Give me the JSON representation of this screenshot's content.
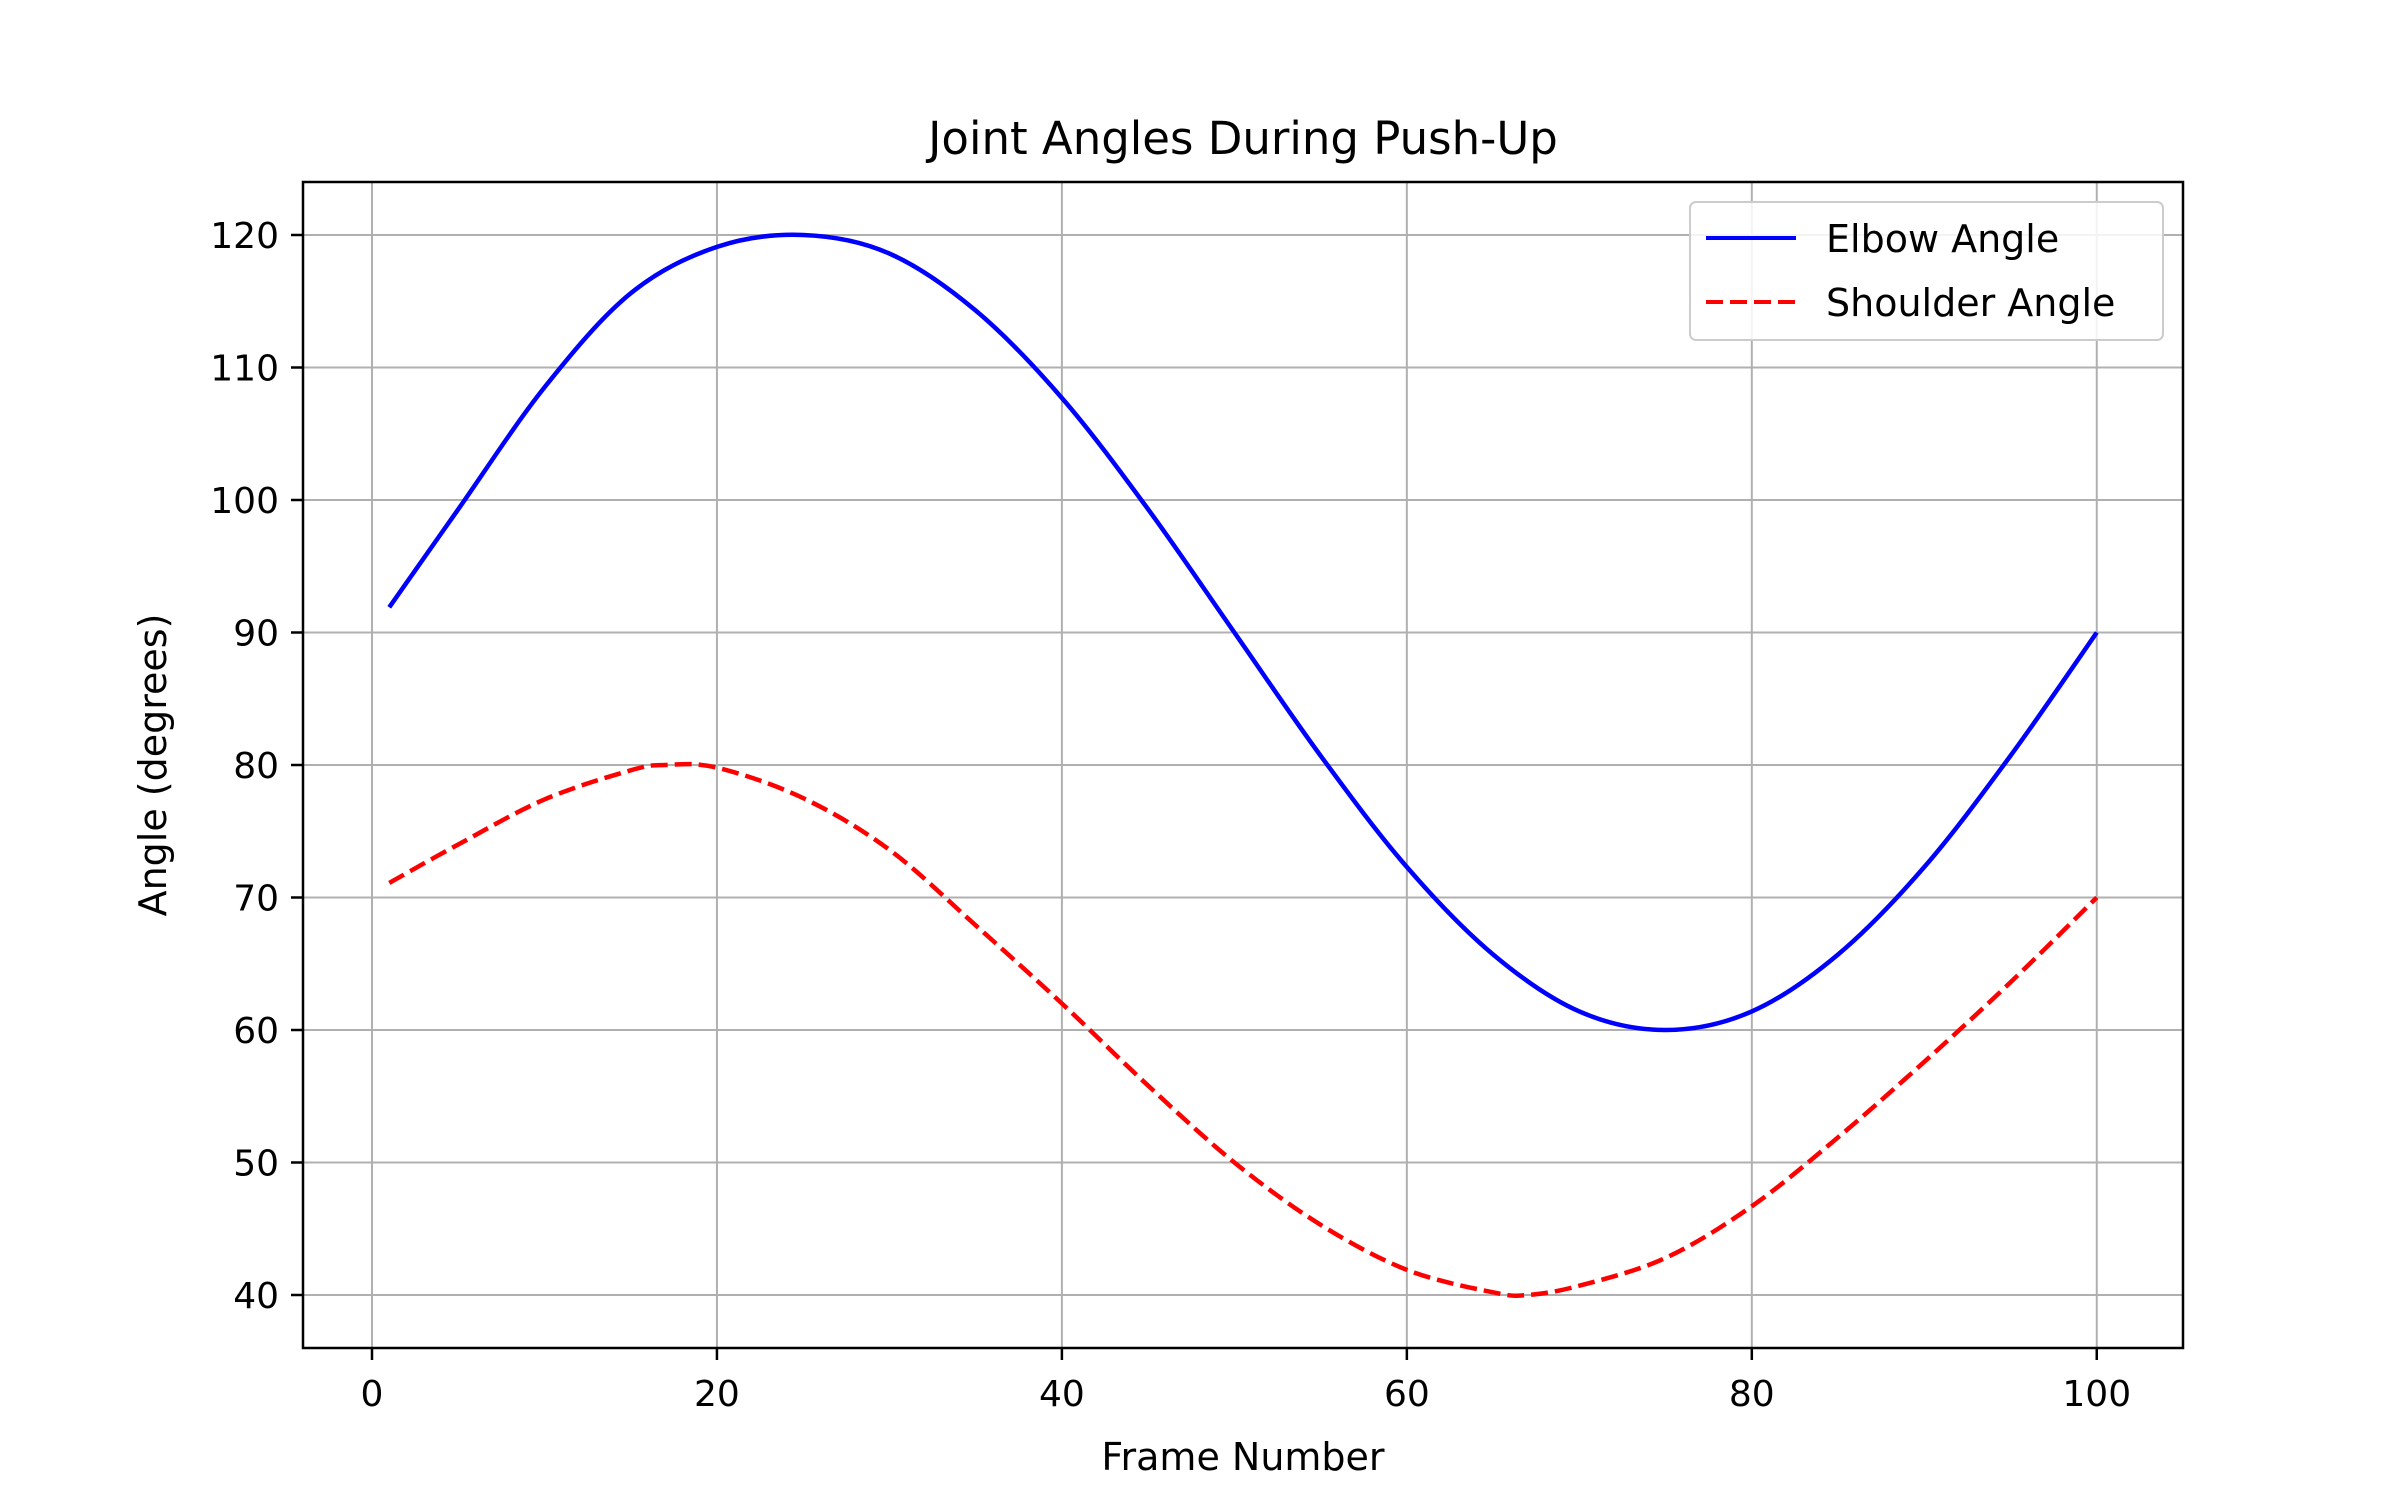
{
  "chart_data": {
    "type": "line",
    "title": "Joint Angles During Push-Up",
    "xlabel": "Frame Number",
    "ylabel": "Angle (degrees)",
    "xlim": [
      -4,
      105
    ],
    "ylim": [
      36,
      124
    ],
    "xticks": [
      0,
      20,
      40,
      60,
      80,
      100
    ],
    "yticks": [
      40,
      50,
      60,
      70,
      80,
      90,
      100,
      110,
      120
    ],
    "grid": true,
    "legend_position": "top-right",
    "series": [
      {
        "name": "Elbow Angle",
        "color": "#0000ff",
        "dash": "solid",
        "x": [
          1,
          5,
          10,
          15,
          20,
          25,
          30,
          35,
          40,
          45,
          50,
          55,
          60,
          65,
          70,
          75,
          80,
          85,
          90,
          95,
          100
        ],
        "y": [
          91.9,
          99.3,
          108.5,
          115.6,
          119.1,
          120.0,
          118.6,
          114.3,
          107.7,
          99.3,
          90.0,
          80.7,
          72.3,
          65.7,
          61.4,
          60.0,
          61.4,
          65.7,
          72.3,
          80.7,
          90.0
        ]
      },
      {
        "name": "Shoulder Angle",
        "color": "#ff0000",
        "dash": "dashed",
        "x": [
          1,
          5,
          10,
          15,
          17,
          20,
          25,
          30,
          35,
          40,
          45,
          50,
          55,
          60,
          65,
          67,
          70,
          75,
          80,
          85,
          90,
          95,
          100
        ],
        "y": [
          71.1,
          74.0,
          77.4,
          79.6,
          80.0,
          79.8,
          77.5,
          73.6,
          67.9,
          62.0,
          55.8,
          50.0,
          45.3,
          41.9,
          40.2,
          40.0,
          40.7,
          42.8,
          46.7,
          51.9,
          57.6,
          63.6,
          70.0
        ]
      }
    ]
  }
}
